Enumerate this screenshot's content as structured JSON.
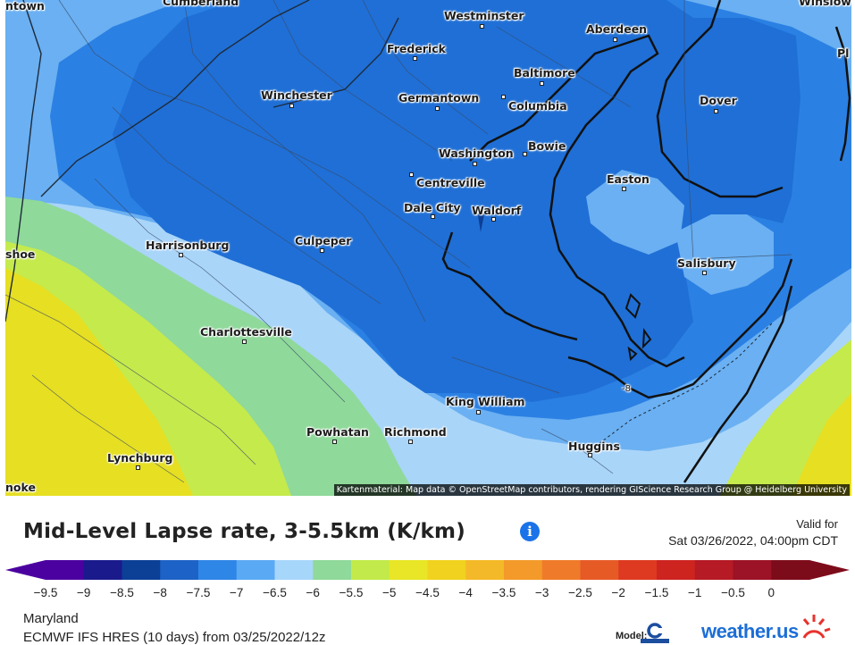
{
  "map": {
    "region_title": "Maryland",
    "attribution": "Kartenmaterial: Map data © OpenStreetMap contributors, rendering GIScience Research Group @ Heidelberg University",
    "contour_label": "-8",
    "colors": {
      "lapse_minus_9_5": "#2a66d4",
      "lapse_minus_8_5": "#1f6fd6",
      "lapse_minus_8": "#2b80e3",
      "lapse_minus_7_5": "#6ab0f2",
      "lapse_minus_7": "#a9d5f9",
      "lapse_minus_6_5": "#8fd99a",
      "lapse_minus_6": "#c5ea4c",
      "lapse_minus_5_5": "#e6df22"
    },
    "cities": [
      {
        "name": "Cumberland",
        "label": "Cumberland"
      },
      {
        "name": "Westminster",
        "label": "Westminster"
      },
      {
        "name": "Aberdeen",
        "label": "Aberdeen"
      },
      {
        "name": "Frederick",
        "label": "Frederick"
      },
      {
        "name": "Baltimore",
        "label": "Baltimore"
      },
      {
        "name": "Winchester",
        "label": "Winchester"
      },
      {
        "name": "Germantown",
        "label": "Germantown"
      },
      {
        "name": "Columbia",
        "label": "Columbia"
      },
      {
        "name": "Dover",
        "label": "Dover"
      },
      {
        "name": "Bowie",
        "label": "Bowie"
      },
      {
        "name": "Washington",
        "label": "Washington"
      },
      {
        "name": "Easton",
        "label": "Easton"
      },
      {
        "name": "Centreville",
        "label": "Centreville"
      },
      {
        "name": "Dale City",
        "label": "Dale City"
      },
      {
        "name": "Waldorf",
        "label": "Waldorf"
      },
      {
        "name": "Harrisonburg",
        "label": "Harrisonburg"
      },
      {
        "name": "Culpeper",
        "label": "Culpeper"
      },
      {
        "name": "Salisbury",
        "label": "Salisbury"
      },
      {
        "name": "Charlottesville",
        "label": "Charlottesville"
      },
      {
        "name": "King William",
        "label": "King William"
      },
      {
        "name": "Powhatan",
        "label": "Powhatan"
      },
      {
        "name": "Richmond",
        "label": "Richmond"
      },
      {
        "name": "Huggins",
        "label": "Huggins"
      },
      {
        "name": "Lynchburg",
        "label": "Lynchburg"
      },
      {
        "name": "Winslow (partial)",
        "label": "Winslow"
      },
      {
        "name": "Hagerstown (partial)",
        "label": "ntown"
      },
      {
        "name": "Shoe (partial)",
        "label": "shoe"
      },
      {
        "name": "Roanoke (partial)",
        "label": "noke"
      },
      {
        "name": "Pl (partial)",
        "label": "Pl"
      }
    ]
  },
  "panel": {
    "title": "Mid-Level Lapse rate, 3-5.5km (K/km)",
    "info_icon": "info-icon",
    "valid_label": "Valid for",
    "valid_time": "Sat 03/26/2022, 04:00pm CDT",
    "region": "Maryland",
    "model_run": "ECMWF IFS HRES (10 days) from 03/25/2022/12z",
    "model_label": "Model:",
    "brand": "weather.us"
  },
  "colorbar": {
    "ticks": [
      "−9.5",
      "−9",
      "−8.5",
      "−8",
      "−7.5",
      "−7",
      "−6.5",
      "−6",
      "−5.5",
      "−5",
      "−4.5",
      "−4",
      "−3.5",
      "−3",
      "−2.5",
      "−2",
      "−1.5",
      "−1",
      "−0.5",
      "0"
    ],
    "colors": [
      "#4b00a0",
      "#1a1a8c",
      "#0c3f96",
      "#1d62c6",
      "#2e86e6",
      "#5aa9f4",
      "#a7d6fb",
      "#8fd99a",
      "#c2ea4a",
      "#e8e626",
      "#f1d21f",
      "#f4b928",
      "#f39a2a",
      "#ef7b2a",
      "#e65a26",
      "#dd3a21",
      "#cd2420",
      "#b51a25",
      "#9c1226",
      "#7d0c1a"
    ]
  }
}
